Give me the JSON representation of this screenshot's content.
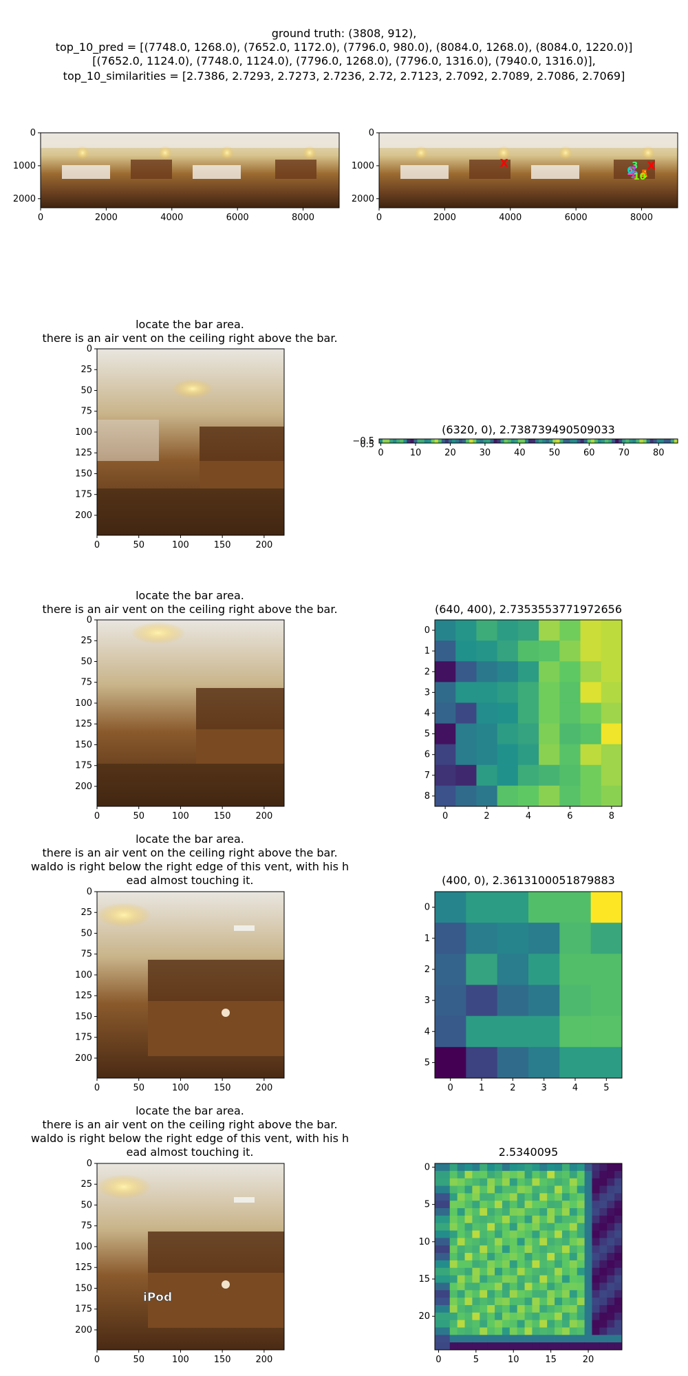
{
  "header": {
    "lines": [
      "ground truth: (3808, 912),",
      "top_10_pred = [(7748.0, 1268.0), (7652.0, 1172.0), (7796.0, 980.0), (8084.0, 1268.0), (8084.0, 1220.0)]",
      "[(7652.0, 1124.0), (7748.0, 1124.0), (7796.0, 1268.0), (7796.0, 1316.0), (7940.0, 1316.0)],",
      "top_10_similarities = [2.7386, 2.7293, 2.7273, 2.7236, 2.72, 2.7123, 2.7092, 2.7089, 2.7086, 2.7069]"
    ]
  },
  "panels": {
    "captions": {
      "p3": [
        "locate the bar area.",
        "there is an air vent on the ceiling right above the bar."
      ],
      "p5": [
        "locate the bar area.",
        "there is an air vent on the ceiling right above the bar."
      ],
      "p7": [
        "locate the bar area.",
        "there is an air vent on the ceiling right above the bar.",
        "waldo is right below the right edge of this vent, with his h",
        "ead almost touching it."
      ],
      "p9": [
        "locate the bar area.",
        "there is an air vent on the ceiling right above the bar.",
        "waldo is right below the right edge of this vent, with his h",
        "ead almost touching it."
      ]
    },
    "image_labels": {
      "p9_overlay": "iPod"
    },
    "marker_labels": [
      "X",
      "X",
      "1",
      "2",
      "3",
      "4",
      "5",
      "6",
      "7",
      "8",
      "9",
      "10"
    ],
    "colors": {
      "viridis_dark": "#440154",
      "viridis_mid": "#21918c",
      "viridis_bright": "#fde725",
      "ground_truth_marker": "#ff0000"
    }
  },
  "chart_data": [
    {
      "id": "p1",
      "type": "image",
      "xticks": [
        0,
        2000,
        4000,
        6000,
        8000
      ],
      "yticks": [
        0,
        1000,
        2000
      ],
      "xlim": [
        0,
        9100
      ],
      "ylim": [
        2276,
        0
      ]
    },
    {
      "id": "p2",
      "type": "scatter",
      "xticks": [
        0,
        2000,
        4000,
        6000,
        8000
      ],
      "yticks": [
        0,
        1000,
        2000
      ],
      "xlim": [
        0,
        9100
      ],
      "ylim": [
        2276,
        0
      ],
      "ground_truth": [
        3808,
        912
      ],
      "predictions": [
        [
          7748,
          1268
        ],
        [
          7652,
          1172
        ],
        [
          7796,
          980
        ],
        [
          8084,
          1268
        ],
        [
          8084,
          1220
        ],
        [
          7652,
          1124
        ],
        [
          7748,
          1124
        ],
        [
          7796,
          1268
        ],
        [
          7796,
          1316
        ],
        [
          7940,
          1316
        ]
      ]
    },
    {
      "id": "p3",
      "type": "image",
      "xticks": [
        0,
        50,
        100,
        150,
        200
      ],
      "yticks": [
        0,
        25,
        50,
        75,
        100,
        125,
        150,
        175,
        200
      ],
      "xlim": [
        0,
        224
      ],
      "ylim": [
        224,
        0
      ]
    },
    {
      "id": "p4",
      "type": "heatmap",
      "title": "(6320, 0), 2.738739490509033",
      "xticks": [
        0,
        10,
        20,
        30,
        40,
        50,
        60,
        70,
        80
      ],
      "yticks_text": [
        "−0.5",
        "0.5"
      ],
      "xlim": [
        -0.5,
        85.5
      ]
    },
    {
      "id": "p5",
      "type": "image",
      "xticks": [
        0,
        50,
        100,
        150,
        200
      ],
      "yticks": [
        0,
        25,
        50,
        75,
        100,
        125,
        150,
        175,
        200
      ],
      "xlim": [
        0,
        224
      ],
      "ylim": [
        224,
        0
      ]
    },
    {
      "id": "p6",
      "type": "heatmap",
      "title": "(640, 400), 2.7353553771972656",
      "size": 9,
      "xticks": [
        0,
        2,
        4,
        6,
        8
      ],
      "yticks": [
        0,
        1,
        2,
        3,
        4,
        5,
        6,
        7,
        8
      ],
      "values": [
        [
          0.45,
          0.52,
          0.62,
          0.55,
          0.58,
          0.85,
          0.78,
          0.92,
          0.9
        ],
        [
          0.3,
          0.5,
          0.52,
          0.58,
          0.7,
          0.72,
          0.82,
          0.92,
          0.9
        ],
        [
          0.05,
          0.28,
          0.4,
          0.45,
          0.55,
          0.8,
          0.75,
          0.85,
          0.9
        ],
        [
          0.35,
          0.52,
          0.52,
          0.55,
          0.62,
          0.78,
          0.72,
          0.95,
          0.88
        ],
        [
          0.32,
          0.22,
          0.48,
          0.5,
          0.62,
          0.78,
          0.72,
          0.78,
          0.85
        ],
        [
          0.05,
          0.42,
          0.45,
          0.55,
          0.58,
          0.8,
          0.68,
          0.72,
          0.98
        ],
        [
          0.2,
          0.42,
          0.45,
          0.5,
          0.55,
          0.82,
          0.72,
          0.9,
          0.85
        ],
        [
          0.15,
          0.12,
          0.55,
          0.5,
          0.62,
          0.65,
          0.7,
          0.78,
          0.85
        ],
        [
          0.25,
          0.35,
          0.4,
          0.72,
          0.75,
          0.82,
          0.72,
          0.78,
          0.82
        ]
      ]
    },
    {
      "id": "p7",
      "type": "image",
      "xticks": [
        0,
        50,
        100,
        150,
        200
      ],
      "yticks": [
        0,
        25,
        50,
        75,
        100,
        125,
        150,
        175,
        200
      ],
      "xlim": [
        0,
        224
      ],
      "ylim": [
        224,
        0
      ]
    },
    {
      "id": "p8",
      "type": "heatmap",
      "title": "(400, 0), 2.3613100051879883",
      "size": 6,
      "xticks": [
        0,
        1,
        2,
        3,
        4,
        5
      ],
      "yticks": [
        0,
        1,
        2,
        3,
        4,
        5
      ],
      "values": [
        [
          0.45,
          0.55,
          0.55,
          0.7,
          0.7,
          1.0
        ],
        [
          0.28,
          0.42,
          0.45,
          0.42,
          0.68,
          0.6
        ],
        [
          0.32,
          0.58,
          0.42,
          0.55,
          0.7,
          0.7
        ],
        [
          0.3,
          0.22,
          0.35,
          0.4,
          0.68,
          0.7
        ],
        [
          0.28,
          0.55,
          0.55,
          0.55,
          0.72,
          0.72
        ],
        [
          0.0,
          0.2,
          0.35,
          0.42,
          0.55,
          0.55
        ]
      ]
    },
    {
      "id": "p9",
      "type": "image",
      "xticks": [
        0,
        50,
        100,
        150,
        200
      ],
      "yticks": [
        0,
        25,
        50,
        75,
        100,
        125,
        150,
        175,
        200
      ],
      "xlim": [
        0,
        224
      ],
      "ylim": [
        224,
        0
      ]
    },
    {
      "id": "p10",
      "type": "heatmap",
      "title": "2.5340095",
      "size": 25,
      "xticks": [
        0,
        5,
        10,
        15,
        20
      ],
      "yticks": [
        0,
        5,
        10,
        15,
        20
      ]
    }
  ]
}
